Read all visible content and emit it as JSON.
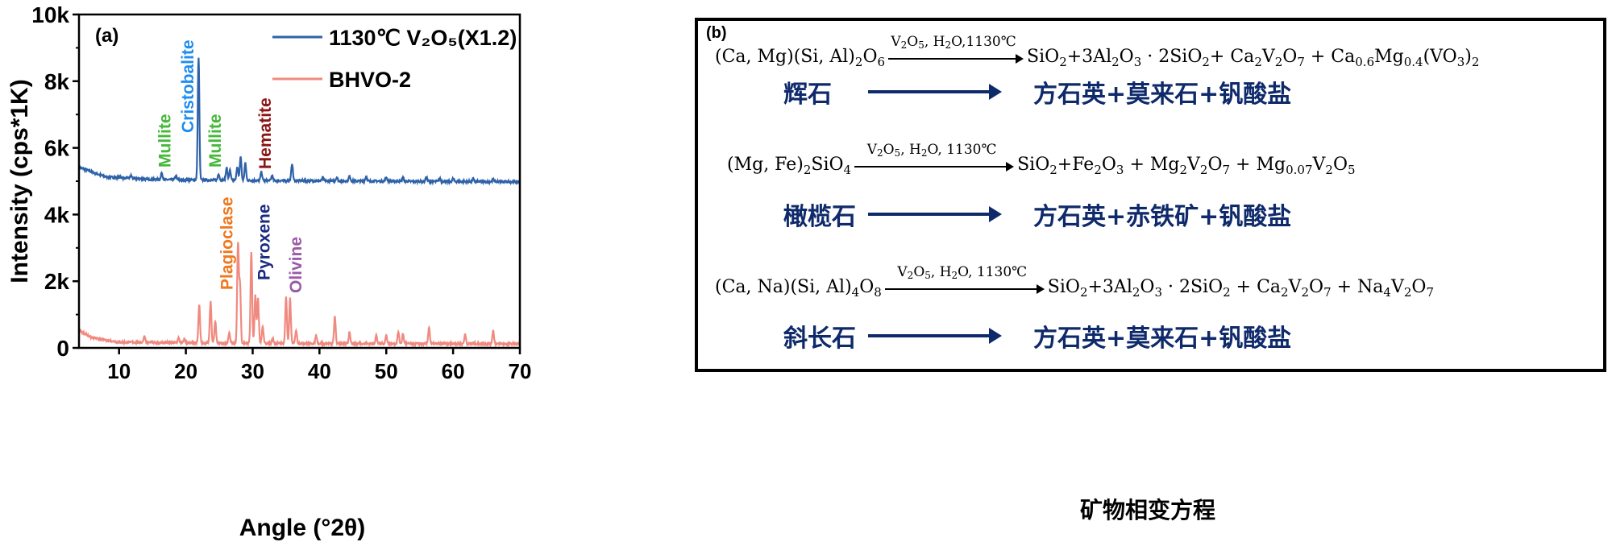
{
  "chart_data": {
    "type": "line",
    "panel_label": "(a)",
    "xlabel": "Angle (°2θ)",
    "ylabel": "Intensity (cps*1K)",
    "xlim": [
      4,
      70
    ],
    "ylim": [
      0,
      10000
    ],
    "xticks": [
      10,
      20,
      30,
      40,
      50,
      60,
      70
    ],
    "yticks": [
      0,
      2000,
      4000,
      6000,
      8000,
      10000
    ],
    "ytick_labels": [
      "0",
      "2k",
      "4k",
      "6k",
      "8k",
      "10k"
    ],
    "grid": false,
    "legend_position": "top-right",
    "series": [
      {
        "name": "1130℃ V2O5(X1.2)",
        "legend_label": "1130℃ V₂O₅(X1.2)",
        "color": "#2e62a8",
        "baseline": [
          [
            4,
            5420
          ],
          [
            8,
            5130
          ],
          [
            15,
            5050
          ],
          [
            30,
            5020
          ],
          [
            50,
            5000
          ],
          [
            70,
            4980
          ]
        ],
        "peaks": [
          [
            11.8,
            80
          ],
          [
            16.4,
            200
          ],
          [
            18.5,
            120
          ],
          [
            21.9,
            3650
          ],
          [
            24.9,
            200
          ],
          [
            26.1,
            380
          ],
          [
            26.6,
            300
          ],
          [
            27.7,
            420
          ],
          [
            28.2,
            720
          ],
          [
            28.9,
            520
          ],
          [
            31.3,
            260
          ],
          [
            32.9,
            150
          ],
          [
            35.9,
            520
          ],
          [
            40.5,
            90
          ],
          [
            42.6,
            110
          ],
          [
            44.5,
            150
          ],
          [
            47.0,
            140
          ],
          [
            50.0,
            120
          ],
          [
            52.5,
            120
          ],
          [
            56.0,
            130
          ],
          [
            58.0,
            90
          ],
          [
            60.0,
            90
          ],
          [
            63.0,
            80
          ],
          [
            66.0,
            60
          ]
        ]
      },
      {
        "name": "BHVO-2",
        "legend_label": "BHVO-2",
        "color": "#f08a80",
        "baseline": [
          [
            4,
            520
          ],
          [
            6,
            300
          ],
          [
            10,
            170
          ],
          [
            20,
            150
          ],
          [
            40,
            130
          ],
          [
            70,
            120
          ]
        ],
        "peaks": [
          [
            13.8,
            200
          ],
          [
            18.9,
            150
          ],
          [
            19.8,
            120
          ],
          [
            22.0,
            1150
          ],
          [
            23.7,
            1250
          ],
          [
            24.4,
            650
          ],
          [
            26.5,
            300
          ],
          [
            27.8,
            2950
          ],
          [
            28.1,
            1750
          ],
          [
            29.8,
            2750
          ],
          [
            30.4,
            1450
          ],
          [
            30.8,
            1350
          ],
          [
            31.5,
            500
          ],
          [
            33.0,
            150
          ],
          [
            35.0,
            1400
          ],
          [
            35.6,
            1350
          ],
          [
            36.5,
            400
          ],
          [
            39.5,
            250
          ],
          [
            42.3,
            800
          ],
          [
            44.5,
            350
          ],
          [
            48.5,
            250
          ],
          [
            50.0,
            250
          ],
          [
            51.8,
            350
          ],
          [
            52.5,
            280
          ],
          [
            56.4,
            500
          ],
          [
            61.8,
            280
          ],
          [
            66.0,
            400
          ]
        ]
      }
    ],
    "annotations": [
      {
        "text": "Mullite",
        "x": 16.5,
        "color": "#46b83a"
      },
      {
        "text": "Cristobalite",
        "x": 19.9,
        "color": "#1e8cf0"
      },
      {
        "text": "Mullite",
        "x": 24.0,
        "color": "#46b83a"
      },
      {
        "text": "Hematite",
        "x": 31.5,
        "color": "#8b1414"
      },
      {
        "text": "Plagioclase",
        "x": 25.8,
        "color": "#f07820"
      },
      {
        "text": "Pyroxene",
        "x": 31.3,
        "color": "#1a2a80"
      },
      {
        "text": "Olivine",
        "x": 36.1,
        "color": "#9a5aa8"
      }
    ]
  },
  "panel_b": {
    "label": "(b)",
    "caption": "矿物相变方程",
    "reactions": [
      {
        "reactant": [
          {
            "t": "(Ca, Mg)(Si, Al)"
          },
          {
            "t": "2",
            "sub": true
          },
          {
            "t": "O"
          },
          {
            "t": "6",
            "sub": true
          }
        ],
        "condition": [
          {
            "t": "V"
          },
          {
            "t": "2",
            "sub": true
          },
          {
            "t": "O"
          },
          {
            "t": "5",
            "sub": true
          },
          {
            "t": ", H"
          },
          {
            "t": "2",
            "sub": true
          },
          {
            "t": "O,1130℃"
          }
        ],
        "products": [
          {
            "t": "SiO"
          },
          {
            "t": "2",
            "sub": true
          },
          {
            "t": "+3Al"
          },
          {
            "t": "2",
            "sub": true
          },
          {
            "t": "O"
          },
          {
            "t": "3",
            "sub": true
          },
          {
            "t": " · 2SiO"
          },
          {
            "t": "2",
            "sub": true
          },
          {
            "t": "+ Ca"
          },
          {
            "t": "2",
            "sub": true
          },
          {
            "t": "V"
          },
          {
            "t": "2",
            "sub": true
          },
          {
            "t": "O"
          },
          {
            "t": "7",
            "sub": true
          },
          {
            "t": " + Ca"
          },
          {
            "t": "0.6",
            "sub": true
          },
          {
            "t": "Mg"
          },
          {
            "t": "0.4",
            "sub": true
          },
          {
            "t": "(VO"
          },
          {
            "t": "3",
            "sub": true
          },
          {
            "t": ")"
          },
          {
            "t": "2",
            "sub": true
          }
        ],
        "mineral": "辉石",
        "result": "方石英+莫来石+钒酸盐"
      },
      {
        "reactant": [
          {
            "t": "(Mg, Fe)"
          },
          {
            "t": "2",
            "sub": true
          },
          {
            "t": "SiO"
          },
          {
            "t": "4",
            "sub": true
          }
        ],
        "condition": [
          {
            "t": "V"
          },
          {
            "t": "2",
            "sub": true
          },
          {
            "t": "O"
          },
          {
            "t": "5",
            "sub": true
          },
          {
            "t": ", H"
          },
          {
            "t": "2",
            "sub": true
          },
          {
            "t": "O,  1130℃"
          }
        ],
        "products": [
          {
            "t": "SiO"
          },
          {
            "t": "2",
            "sub": true
          },
          {
            "t": "+Fe"
          },
          {
            "t": "2",
            "sub": true
          },
          {
            "t": "O"
          },
          {
            "t": "3",
            "sub": true
          },
          {
            "t": " + Mg"
          },
          {
            "t": "2",
            "sub": true
          },
          {
            "t": "V"
          },
          {
            "t": "2",
            "sub": true
          },
          {
            "t": "O"
          },
          {
            "t": "7",
            "sub": true
          },
          {
            "t": " + Mg"
          },
          {
            "t": "0.07",
            "sub": true
          },
          {
            "t": "V"
          },
          {
            "t": "2",
            "sub": true
          },
          {
            "t": "O"
          },
          {
            "t": "5",
            "sub": true
          }
        ],
        "mineral": "橄榄石",
        "result": "方石英+赤铁矿+钒酸盐"
      },
      {
        "reactant": [
          {
            "t": "(Ca, Na)(Si, Al)"
          },
          {
            "t": "4",
            "sub": true
          },
          {
            "t": "O"
          },
          {
            "t": "8",
            "sub": true
          }
        ],
        "condition": [
          {
            "t": "V"
          },
          {
            "t": "2",
            "sub": true
          },
          {
            "t": "O"
          },
          {
            "t": "5",
            "sub": true
          },
          {
            "t": ", H"
          },
          {
            "t": "2",
            "sub": true
          },
          {
            "t": "O,  1130℃"
          }
        ],
        "products": [
          {
            "t": "SiO"
          },
          {
            "t": "2",
            "sub": true
          },
          {
            "t": "+3Al"
          },
          {
            "t": "2",
            "sub": true
          },
          {
            "t": "O"
          },
          {
            "t": "3",
            "sub": true
          },
          {
            "t": " · 2SiO"
          },
          {
            "t": "2",
            "sub": true
          },
          {
            "t": " + Ca"
          },
          {
            "t": "2",
            "sub": true
          },
          {
            "t": "V"
          },
          {
            "t": "2",
            "sub": true
          },
          {
            "t": "O"
          },
          {
            "t": "7",
            "sub": true
          },
          {
            "t": " + Na"
          },
          {
            "t": "4",
            "sub": true
          },
          {
            "t": "V"
          },
          {
            "t": "2",
            "sub": true
          },
          {
            "t": "O"
          },
          {
            "t": "7",
            "sub": true
          }
        ],
        "mineral": "斜长石",
        "result": "方石英+莫来石+钒酸盐"
      }
    ]
  }
}
